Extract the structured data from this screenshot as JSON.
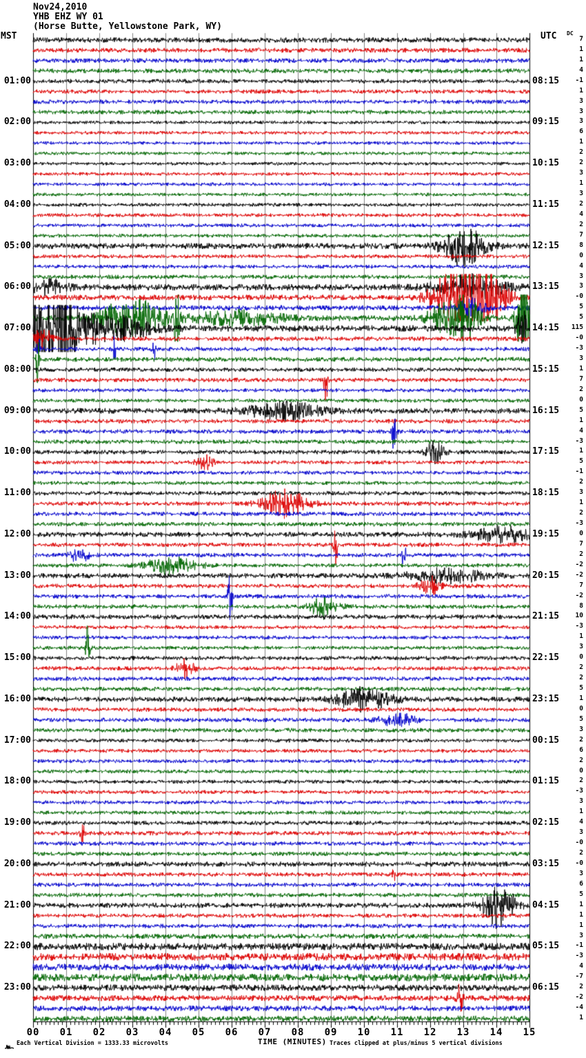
{
  "header": {
    "date": "Nov24,2010",
    "station": "YHB EHZ WY 01",
    "location": "(Horse Butte, Yellowstone Park, WY)"
  },
  "axes": {
    "left_header": "MST",
    "right_header": "UTC",
    "dc_header": "DC",
    "x_title": "TIME (MINUTES)",
    "x_ticks": [
      "00",
      "01",
      "02",
      "03",
      "04",
      "05",
      "06",
      "07",
      "08",
      "09",
      "10",
      "11",
      "12",
      "13",
      "14",
      "15"
    ]
  },
  "footer": {
    "scale_note": "Each Vertical Division = 1333.33 microvolts",
    "clip_note": "Traces clipped at plus/minus 5 vertical divisions",
    "waveform_icon": "squiggle-mark"
  },
  "chart_data": {
    "type": "line",
    "subtype": "helicorder-seismogram",
    "rows": 96,
    "minutes_per_line": 15,
    "x_range_minutes": [
      0,
      15
    ],
    "grid": "vertical-gridlines-every-minute",
    "minor_ticks_per_minute": 8,
    "trace_colors_cycle": [
      "#000000",
      "#dd0000",
      "#0000cc",
      "#006600"
    ],
    "grid_color": "#808080",
    "background_color": "#ffffff",
    "left_hour_labels": [
      "01:00",
      "02:00",
      "03:00",
      "04:00",
      "05:00",
      "06:00",
      "07:00",
      "08:00",
      "09:00",
      "10:00",
      "11:00",
      "12:00",
      "13:00",
      "14:00",
      "15:00",
      "16:00",
      "17:00",
      "18:00",
      "19:00",
      "20:00",
      "21:00",
      "22:00",
      "23:00"
    ],
    "right_utc_labels": [
      "08:15",
      "09:15",
      "10:15",
      "11:15",
      "12:15",
      "13:15",
      "14:15",
      "15:15",
      "16:15",
      "17:15",
      "18:15",
      "19:15",
      "20:15",
      "21:15",
      "22:15",
      "23:15",
      "00:15",
      "01:15",
      "02:15",
      "03:15",
      "04:15",
      "05:15",
      "06:15"
    ],
    "dc_values": [
      "7",
      "1",
      "1",
      "4",
      "-1",
      "1",
      "3",
      "3",
      "3",
      "6",
      "1",
      "2",
      "2",
      "3",
      "1",
      "3",
      "2",
      "4",
      "2",
      "7",
      "8",
      "0",
      "4",
      "3",
      "3",
      "-0",
      "5",
      "5",
      "115",
      "-0",
      "-3",
      "3",
      "1",
      "7",
      "2",
      "0",
      "5",
      "1",
      "4",
      "-3",
      "1",
      "5",
      "-1",
      "2",
      "3",
      "1",
      "2",
      "-3",
      "0",
      "7",
      "2",
      "-2",
      "-2",
      "7",
      "-2",
      "8",
      "10",
      "-3",
      "1",
      "3",
      "0",
      "2",
      "2",
      "5",
      "1",
      "0",
      "5",
      "3",
      "2",
      "6",
      "2",
      "0",
      "2",
      "-3",
      "3",
      "1",
      "4",
      "3",
      "-0",
      "2",
      "-0",
      "3",
      "6",
      "5",
      "1",
      "1",
      "1",
      "3",
      "-1",
      "-3",
      "4",
      "-7",
      "2",
      "-2",
      "-4",
      "1"
    ],
    "noise_levels": [
      1.2,
      1.1,
      1.1,
      1.1,
      1.0,
      1.0,
      1.0,
      1.0,
      0.8,
      0.8,
      0.8,
      0.8,
      0.8,
      0.8,
      0.8,
      0.8,
      0.85,
      0.85,
      0.85,
      0.85,
      1.4,
      0.9,
      0.9,
      1.0,
      1.5,
      1.3,
      1.2,
      1.4,
      1.5,
      1.1,
      1.0,
      1.1,
      1.0,
      1.0,
      0.9,
      0.9,
      1.3,
      1.0,
      1.0,
      1.0,
      1.0,
      0.9,
      0.9,
      0.9,
      1.0,
      1.0,
      1.0,
      1.0,
      1.2,
      1.0,
      1.0,
      0.9,
      1.2,
      1.0,
      1.0,
      1.0,
      1.1,
      0.9,
      0.9,
      0.9,
      1.0,
      1.0,
      1.0,
      1.0,
      1.2,
      1.0,
      1.0,
      1.0,
      0.9,
      0.9,
      0.9,
      0.9,
      0.9,
      0.9,
      0.9,
      0.9,
      1.0,
      1.0,
      1.0,
      1.0,
      1.2,
      1.0,
      1.0,
      1.0,
      1.2,
      1.0,
      1.0,
      1.2,
      1.7,
      1.8,
      1.6,
      1.8,
      1.5,
      1.4,
      1.3,
      1.4
    ],
    "events_row_t_dur_amp": [
      [
        20,
        13.0,
        1.2,
        9
      ],
      [
        24,
        0.5,
        1.0,
        3
      ],
      [
        24,
        13.2,
        2.0,
        5
      ],
      [
        25,
        12.4,
        1.0,
        6
      ],
      [
        25,
        13.3,
        1.5,
        24
      ],
      [
        26,
        13.2,
        0.8,
        4
      ],
      [
        27,
        3.0,
        2.0,
        8
      ],
      [
        27,
        4.35,
        0.15,
        26
      ],
      [
        27,
        6.2,
        2.5,
        3
      ],
      [
        27,
        12.3,
        0.8,
        5
      ],
      [
        27,
        13.0,
        0.9,
        11
      ],
      [
        27,
        14.78,
        0.3,
        34
      ],
      [
        28,
        0.5,
        1.3,
        32
      ],
      [
        28,
        2.2,
        2.5,
        6
      ],
      [
        28,
        14.78,
        0.3,
        9
      ],
      [
        29,
        0.3,
        0.5,
        5
      ],
      [
        30,
        0.15,
        0.1,
        8
      ],
      [
        30,
        2.45,
        0.1,
        7
      ],
      [
        30,
        3.65,
        0.1,
        6
      ],
      [
        31,
        0.12,
        0.1,
        18
      ],
      [
        33,
        8.85,
        0.12,
        12
      ],
      [
        36,
        7.6,
        2.2,
        3.5
      ],
      [
        38,
        10.9,
        0.15,
        8
      ],
      [
        40,
        12.15,
        0.5,
        5
      ],
      [
        41,
        5.2,
        0.5,
        3
      ],
      [
        45,
        7.6,
        1.3,
        6
      ],
      [
        48,
        14.2,
        1.8,
        3
      ],
      [
        49,
        9.15,
        0.12,
        9
      ],
      [
        50,
        1.4,
        0.5,
        4
      ],
      [
        50,
        11.2,
        0.12,
        7
      ],
      [
        51,
        4.2,
        1.5,
        4
      ],
      [
        52,
        12.5,
        2.2,
        3
      ],
      [
        53,
        12.0,
        0.6,
        4
      ],
      [
        54,
        5.95,
        0.12,
        16
      ],
      [
        55,
        8.8,
        0.8,
        5
      ],
      [
        59,
        1.65,
        0.12,
        10
      ],
      [
        61,
        4.6,
        0.5,
        4
      ],
      [
        64,
        10.0,
        1.6,
        5
      ],
      [
        66,
        11.0,
        1.0,
        3
      ],
      [
        77,
        1.5,
        0.12,
        5
      ],
      [
        81,
        10.9,
        0.12,
        5
      ],
      [
        84,
        14.1,
        0.9,
        10
      ],
      [
        93,
        12.9,
        0.15,
        8
      ]
    ],
    "clip_divisions": 5
  }
}
